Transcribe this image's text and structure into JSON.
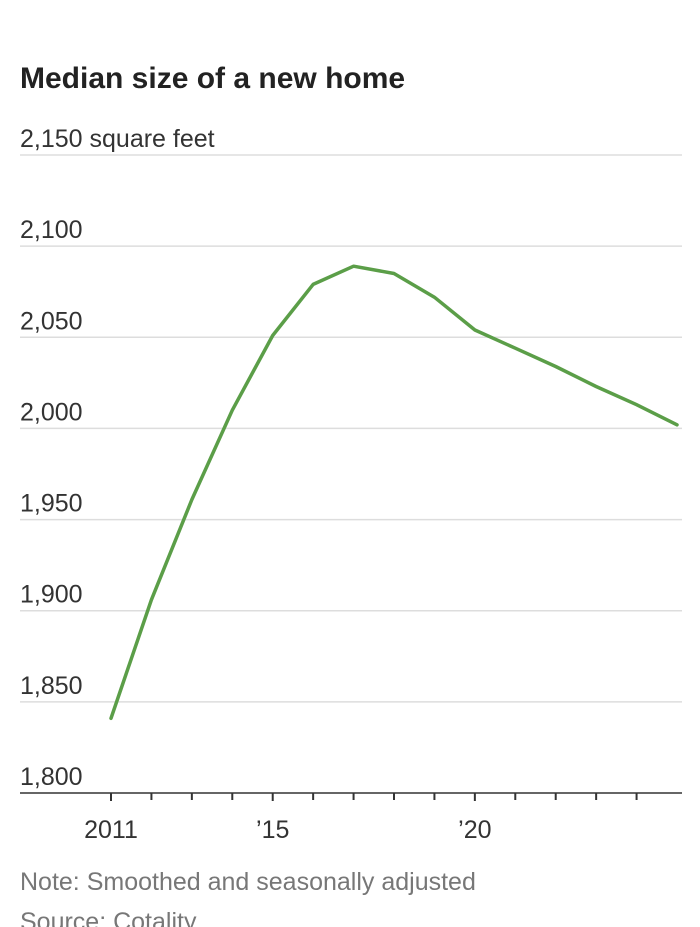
{
  "chart_data": {
    "type": "line",
    "title": "Median size of a new home",
    "x": [
      2011,
      2012,
      2013,
      2014,
      2015,
      2016,
      2017,
      2018,
      2019,
      2020,
      2021,
      2022,
      2023,
      2024,
      2025
    ],
    "series": [
      {
        "color": "#5b9e48",
        "values": [
          1841,
          1906,
          1961,
          2010,
          2051,
          2079,
          2089,
          2085,
          2072,
          2054,
          2044,
          2034,
          2023,
          2013,
          2002
        ]
      }
    ],
    "xlim": [
      2011,
      2025
    ],
    "xticks": [
      2011,
      {
        "value": 2015,
        "label": "’15"
      },
      {
        "value": 2020,
        "label": "’20"
      }
    ],
    "xminorticks": [
      2012,
      2013,
      2014,
      2016,
      2017,
      2018,
      2019,
      2021,
      2022,
      2023,
      2024
    ],
    "ylim": [
      1800,
      2150
    ],
    "yticks": [
      {
        "value": 1800,
        "label": "1,800"
      },
      {
        "value": 1850,
        "label": "1,850"
      },
      {
        "value": 1900,
        "label": "1,900"
      },
      {
        "value": 1950,
        "label": "1,950"
      },
      {
        "value": 2000,
        "label": "2,000"
      },
      {
        "value": 2050,
        "label": "2,050"
      },
      {
        "value": 2100,
        "label": "2,100"
      },
      {
        "value": 2150,
        "label": "2,150 square feet"
      }
    ],
    "grid": true,
    "note": "Note: Smoothed and seasonally adjusted",
    "source": "Source: Cotality"
  }
}
